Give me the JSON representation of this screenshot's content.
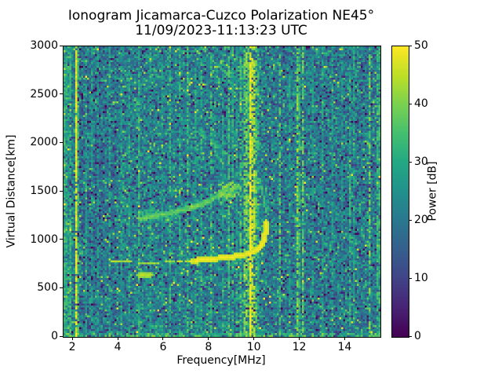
{
  "title": {
    "line1": "Ionogram Jicamarca-Cuzco Polarization NE45°",
    "line2": "11/09/2023-11:13:23 UTC"
  },
  "axes": {
    "xlabel": "Frequency[MHz]",
    "ylabel": "Virtual Distance[km]",
    "xticks": [
      2,
      4,
      6,
      8,
      10,
      12,
      14
    ],
    "yticks": [
      0,
      500,
      1000,
      1500,
      2000,
      2500,
      3000
    ],
    "xlim": [
      1.58,
      15.54
    ],
    "ylim": [
      0,
      3000
    ]
  },
  "colorbar": {
    "label": "Power [dB]",
    "ticks": [
      0,
      10,
      20,
      30,
      40,
      50
    ],
    "vmin": 0,
    "vmax": 50,
    "colormap": "viridis",
    "stops": [
      "#440154",
      "#482475",
      "#414487",
      "#355f8d",
      "#2a788e",
      "#21918c",
      "#22a884",
      "#44bf70",
      "#7ad151",
      "#bddf26",
      "#fde725"
    ]
  },
  "chart_data": {
    "type": "heatmap",
    "title": "Ionogram Jicamarca-Cuzco Polarization NE45°",
    "subtitle": "11/09/2023-11:13:23 UTC",
    "xlabel": "Frequency[MHz]",
    "ylabel": "Virtual Distance[km]",
    "xlim": [
      1.58,
      15.54
    ],
    "ylim": [
      0,
      3000
    ],
    "clim": [
      0,
      50
    ],
    "colorbar_label": "Power [dB]",
    "colormap": "viridis",
    "grid": false,
    "legend": "none",
    "resolution": {
      "cols": 162,
      "rows": 148
    },
    "noise": {
      "mean_db": 21.5,
      "std_db": 5.5,
      "dark_speckle_prob": 0.1,
      "bright_speckle_prob": 0.07,
      "seed": 42
    },
    "band_gains": [
      {
        "f0": 1.58,
        "f1": 1.95,
        "gain_db": 4.5
      },
      {
        "f0": 2.15,
        "f1": 3.9,
        "gain_db": -2.5
      },
      {
        "f0": 10.5,
        "f1": 15.54,
        "gain_db": -1.2
      }
    ],
    "rfi_stripes": [
      {
        "f": 1.62,
        "cols": 2,
        "power_db": 31,
        "solid": false
      },
      {
        "f": 1.8,
        "cols": 1,
        "power_db": 33,
        "solid": false
      },
      {
        "f": 2.06,
        "cols": 1,
        "power_db": 48,
        "solid": true
      },
      {
        "f": 2.22,
        "cols": 1,
        "power_db": 33,
        "solid": false
      },
      {
        "f": 2.5,
        "cols": 1,
        "power_db": 27,
        "solid": false
      },
      {
        "f": 2.78,
        "cols": 1,
        "power_db": 28,
        "solid": false
      },
      {
        "f": 3.06,
        "cols": 1,
        "power_db": 28,
        "solid": false
      },
      {
        "f": 3.57,
        "cols": 1,
        "power_db": 30,
        "solid": false
      },
      {
        "f": 4.05,
        "cols": 1,
        "power_db": 28,
        "solid": false
      },
      {
        "f": 4.44,
        "cols": 1,
        "power_db": 30,
        "solid": false
      },
      {
        "f": 4.87,
        "cols": 1,
        "power_db": 32,
        "solid": false
      },
      {
        "f": 5.4,
        "cols": 1,
        "power_db": 29,
        "solid": false
      },
      {
        "f": 5.92,
        "cols": 1,
        "power_db": 27,
        "solid": false
      },
      {
        "f": 6.24,
        "cols": 1,
        "power_db": 33,
        "solid": false
      },
      {
        "f": 6.67,
        "cols": 1,
        "power_db": 31,
        "solid": false
      },
      {
        "f": 7.05,
        "cols": 1,
        "power_db": 35,
        "solid": false
      },
      {
        "f": 7.33,
        "cols": 1,
        "power_db": 30,
        "solid": false
      },
      {
        "f": 7.57,
        "cols": 1,
        "power_db": 33,
        "solid": false
      },
      {
        "f": 8.04,
        "cols": 1,
        "power_db": 34,
        "solid": false
      },
      {
        "f": 8.56,
        "cols": 1,
        "power_db": 29,
        "solid": false
      },
      {
        "f": 8.86,
        "cols": 1,
        "power_db": 35,
        "solid": false
      },
      {
        "f": 9.03,
        "cols": 1,
        "power_db": 31,
        "solid": false
      },
      {
        "f": 9.2,
        "cols": 1,
        "power_db": 30,
        "solid": false
      },
      {
        "f": 9.37,
        "cols": 1,
        "power_db": 36,
        "solid": false
      },
      {
        "f": 9.49,
        "cols": 1,
        "power_db": 39,
        "solid": false
      },
      {
        "f": 9.6,
        "cols": 1,
        "power_db": 41,
        "solid": false
      },
      {
        "f": 9.69,
        "cols": 1,
        "power_db": 37,
        "solid": false
      },
      {
        "f": 9.79,
        "cols": 1,
        "power_db": 50,
        "solid": true
      },
      {
        "f": 9.89,
        "cols": 2,
        "power_db": 45,
        "solid": false
      },
      {
        "f": 10.0,
        "cols": 1,
        "power_db": 37,
        "solid": false
      },
      {
        "f": 10.13,
        "cols": 1,
        "power_db": 33,
        "solid": false
      },
      {
        "f": 11.06,
        "cols": 1,
        "power_db": 36,
        "solid": false
      },
      {
        "f": 11.47,
        "cols": 1,
        "power_db": 28,
        "solid": false
      },
      {
        "f": 11.81,
        "cols": 1,
        "power_db": 41,
        "solid": false
      },
      {
        "f": 11.95,
        "cols": 1,
        "power_db": 33,
        "solid": false
      },
      {
        "f": 12.09,
        "cols": 1,
        "power_db": 39,
        "solid": false
      },
      {
        "f": 12.55,
        "cols": 1,
        "power_db": 27,
        "solid": false
      },
      {
        "f": 12.92,
        "cols": 1,
        "power_db": 29,
        "solid": false
      },
      {
        "f": 13.35,
        "cols": 1,
        "power_db": 28,
        "solid": false
      },
      {
        "f": 13.8,
        "cols": 1,
        "power_db": 27,
        "solid": false
      },
      {
        "f": 14.18,
        "cols": 1,
        "power_db": 32,
        "solid": false
      },
      {
        "f": 14.35,
        "cols": 1,
        "power_db": 29,
        "solid": false
      },
      {
        "f": 15.04,
        "cols": 1,
        "power_db": 38,
        "solid": false
      },
      {
        "f": 15.4,
        "cols": 2,
        "power_db": 33,
        "solid": false
      }
    ],
    "traces": [
      {
        "name": "f_region_echo_left",
        "points": [
          [
            3.48,
            818
          ],
          [
            3.62,
            795
          ],
          [
            4.1,
            782
          ],
          [
            5.2,
            778
          ],
          [
            6.4,
            782
          ],
          [
            7.2,
            795
          ]
        ],
        "power_db": 45,
        "radius": 0.9,
        "dropout": 0.35,
        "jitter": 6
      },
      {
        "name": "f_region_echo_bright",
        "points": [
          [
            7.2,
            795
          ],
          [
            7.8,
            810
          ],
          [
            8.6,
            828
          ],
          [
            9.2,
            845
          ],
          [
            9.6,
            865
          ],
          [
            9.9,
            890
          ],
          [
            10.12,
            920
          ],
          [
            10.28,
            965
          ],
          [
            10.38,
            1030
          ],
          [
            10.44,
            1110
          ],
          [
            10.46,
            1205
          ]
        ],
        "power_db": 50,
        "radius": 1.2,
        "dropout": 0.05,
        "jitter": 3
      },
      {
        "name": "f_cusp_faint_continuation",
        "points": [
          [
            10.46,
            1205
          ],
          [
            10.42,
            1320
          ],
          [
            10.33,
            1445
          ],
          [
            10.24,
            1565
          ],
          [
            10.17,
            1680
          ]
        ],
        "power_db": 37,
        "radius": 0.6,
        "dropout": 0.5,
        "jitter": 5
      },
      {
        "name": "f_cusp_echo_line",
        "points": [
          [
            10.58,
            1150
          ],
          [
            10.55,
            1260
          ],
          [
            10.5,
            1370
          ]
        ],
        "power_db": 33,
        "radius": 0.5,
        "dropout": 0.55,
        "jitter": 5
      },
      {
        "name": "x_mode_echo",
        "points": [
          [
            4.85,
            1232
          ],
          [
            5.6,
            1262
          ],
          [
            6.3,
            1292
          ],
          [
            7.0,
            1330
          ],
          [
            7.6,
            1378
          ],
          [
            8.1,
            1430
          ],
          [
            8.6,
            1490
          ],
          [
            9.0,
            1540
          ],
          [
            9.25,
            1568
          ]
        ],
        "power_db": 41,
        "radius": 1.0,
        "dropout": 0.42,
        "jitter": 8
      },
      {
        "name": "e_region_patch",
        "points": [
          [
            4.82,
            658
          ],
          [
            5.05,
            650
          ],
          [
            5.35,
            653
          ]
        ],
        "power_db": 46,
        "radius": 1.0,
        "dropout": 0.15,
        "jitter": 4
      },
      {
        "name": "second_hop_upper",
        "points": [
          [
            7.6,
            3000
          ],
          [
            8.2,
            2850
          ],
          [
            8.95,
            2665
          ]
        ],
        "power_db": 38,
        "radius": 0.6,
        "dropout": 0.55,
        "jitter": 6
      },
      {
        "name": "second_hop_lower",
        "points": [
          [
            7.35,
            2135
          ],
          [
            8.1,
            2010
          ],
          [
            8.95,
            1865
          ]
        ],
        "power_db": 36,
        "radius": 0.5,
        "dropout": 0.6,
        "jitter": 6
      }
    ],
    "clouds": [
      {
        "name": "x_mode_bright_patch",
        "f0": 8.35,
        "f1": 9.3,
        "km0": 1450,
        "km1": 1600,
        "count": 90,
        "power_db": 44,
        "size": 0.8
      },
      {
        "name": "x_mode_fuzzy_start",
        "f0": 4.8,
        "f1": 6.6,
        "km0": 1190,
        "km1": 1330,
        "count": 120,
        "power_db": 36,
        "size": 0.8
      }
    ],
    "bottom_edge_noise": {
      "rows": 2,
      "power_db": 30,
      "prob": 0.5
    }
  }
}
